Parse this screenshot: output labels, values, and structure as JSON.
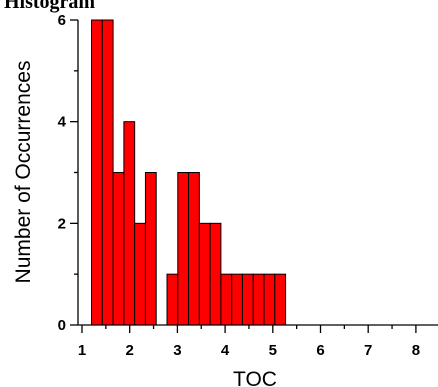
{
  "chart_data": {
    "type": "bar",
    "title": "Histogram",
    "xlabel": "TOC",
    "ylabel": "Number of Occurrences",
    "xlim": [
      1,
      8.3
    ],
    "ylim": [
      0,
      6
    ],
    "x_ticks": [
      1,
      2,
      3,
      4,
      5,
      6,
      7,
      8
    ],
    "y_ticks": [
      0,
      2,
      4,
      6
    ],
    "bin_width": 0.226,
    "bar_color": "#ff0000",
    "bins": [
      {
        "start": 1.2,
        "value": 6
      },
      {
        "start": 1.426,
        "value": 6
      },
      {
        "start": 1.652,
        "value": 3
      },
      {
        "start": 1.878,
        "value": 4
      },
      {
        "start": 2.104,
        "value": 2
      },
      {
        "start": 2.33,
        "value": 3
      },
      {
        "start": 2.556,
        "value": 0
      },
      {
        "start": 2.782,
        "value": 1
      },
      {
        "start": 3.008,
        "value": 3
      },
      {
        "start": 3.234,
        "value": 3
      },
      {
        "start": 3.46,
        "value": 2
      },
      {
        "start": 3.686,
        "value": 2
      },
      {
        "start": 3.912,
        "value": 1
      },
      {
        "start": 4.138,
        "value": 1
      },
      {
        "start": 4.364,
        "value": 1
      },
      {
        "start": 4.59,
        "value": 1
      },
      {
        "start": 4.816,
        "value": 1
      },
      {
        "start": 5.042,
        "value": 1
      }
    ]
  }
}
